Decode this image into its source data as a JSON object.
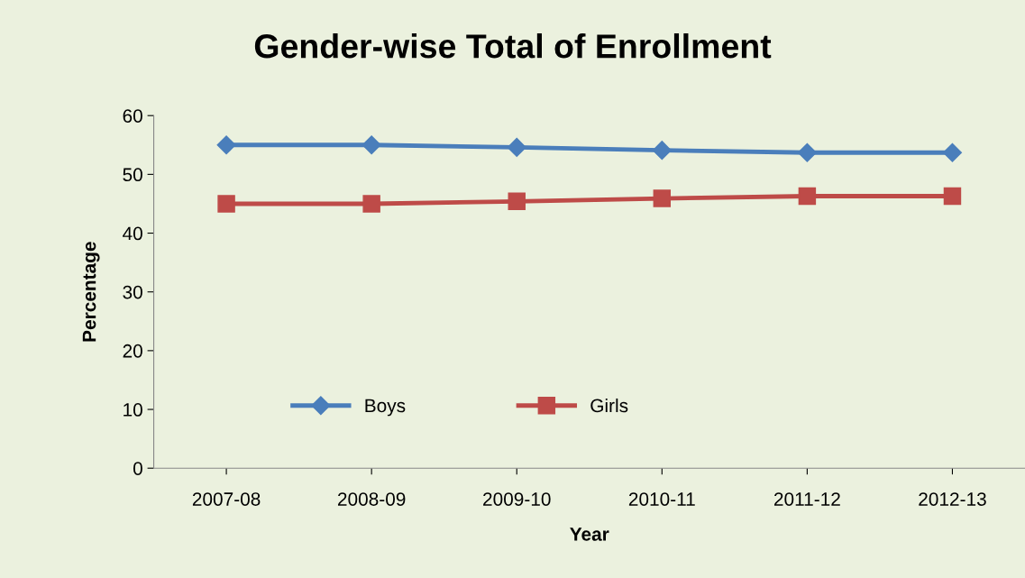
{
  "chart_data": {
    "type": "line",
    "title": "Gender-wise Total of Enrollment",
    "xlabel": "Year",
    "ylabel": "Percentage",
    "categories": [
      "2007-08",
      "2008-09",
      "2009-10",
      "2010-11",
      "2011-12",
      "2012-13"
    ],
    "series": [
      {
        "name": "Boys",
        "color": "#4a7ebb",
        "marker": "diamond",
        "values": [
          55,
          55,
          54.6,
          54.1,
          53.7,
          53.7
        ]
      },
      {
        "name": "Girls",
        "color": "#be4b48",
        "marker": "square",
        "values": [
          45,
          45,
          45.4,
          45.9,
          46.3,
          46.3
        ]
      }
    ],
    "ylim": [
      0,
      60
    ],
    "yticks": [
      0,
      10,
      20,
      30,
      40,
      50,
      60
    ],
    "grid": false,
    "legend": "bottom left",
    "line_style": "solid"
  }
}
